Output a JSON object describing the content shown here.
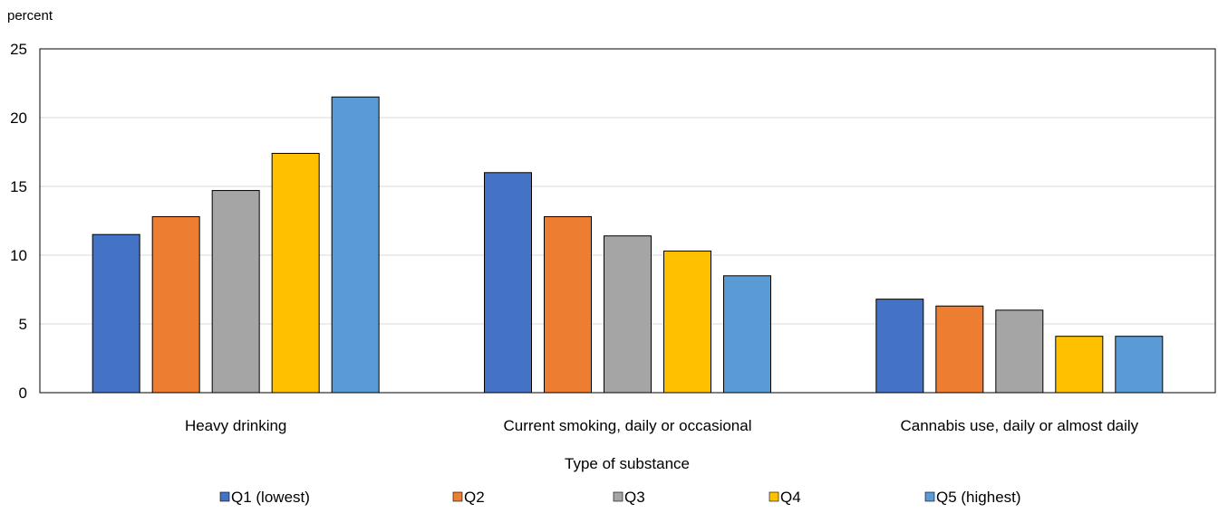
{
  "chart_data": {
    "type": "bar",
    "y_unit_label": "percent",
    "xlabel": "Type of substance",
    "ylabel": "",
    "ylim": [
      0,
      25
    ],
    "y_ticks": [
      0,
      5,
      10,
      15,
      20,
      25
    ],
    "grid": true,
    "legend_position": "bottom",
    "categories": [
      "Heavy drinking",
      "Current smoking, daily or occasional",
      "Cannabis use, daily or almost daily"
    ],
    "series": [
      {
        "name": "Q1 (lowest)",
        "color": "#4472c4",
        "values": [
          11.5,
          16.0,
          6.8
        ]
      },
      {
        "name": "Q2",
        "color": "#ed7d31",
        "values": [
          12.8,
          12.8,
          6.3
        ]
      },
      {
        "name": "Q3",
        "color": "#a5a5a5",
        "values": [
          14.7,
          11.4,
          6.0
        ]
      },
      {
        "name": "Q4",
        "color": "#ffc000",
        "values": [
          17.4,
          10.3,
          4.1
        ]
      },
      {
        "name": "Q5 (highest)",
        "color": "#5b9bd5",
        "values": [
          21.5,
          8.5,
          4.1
        ]
      }
    ]
  }
}
